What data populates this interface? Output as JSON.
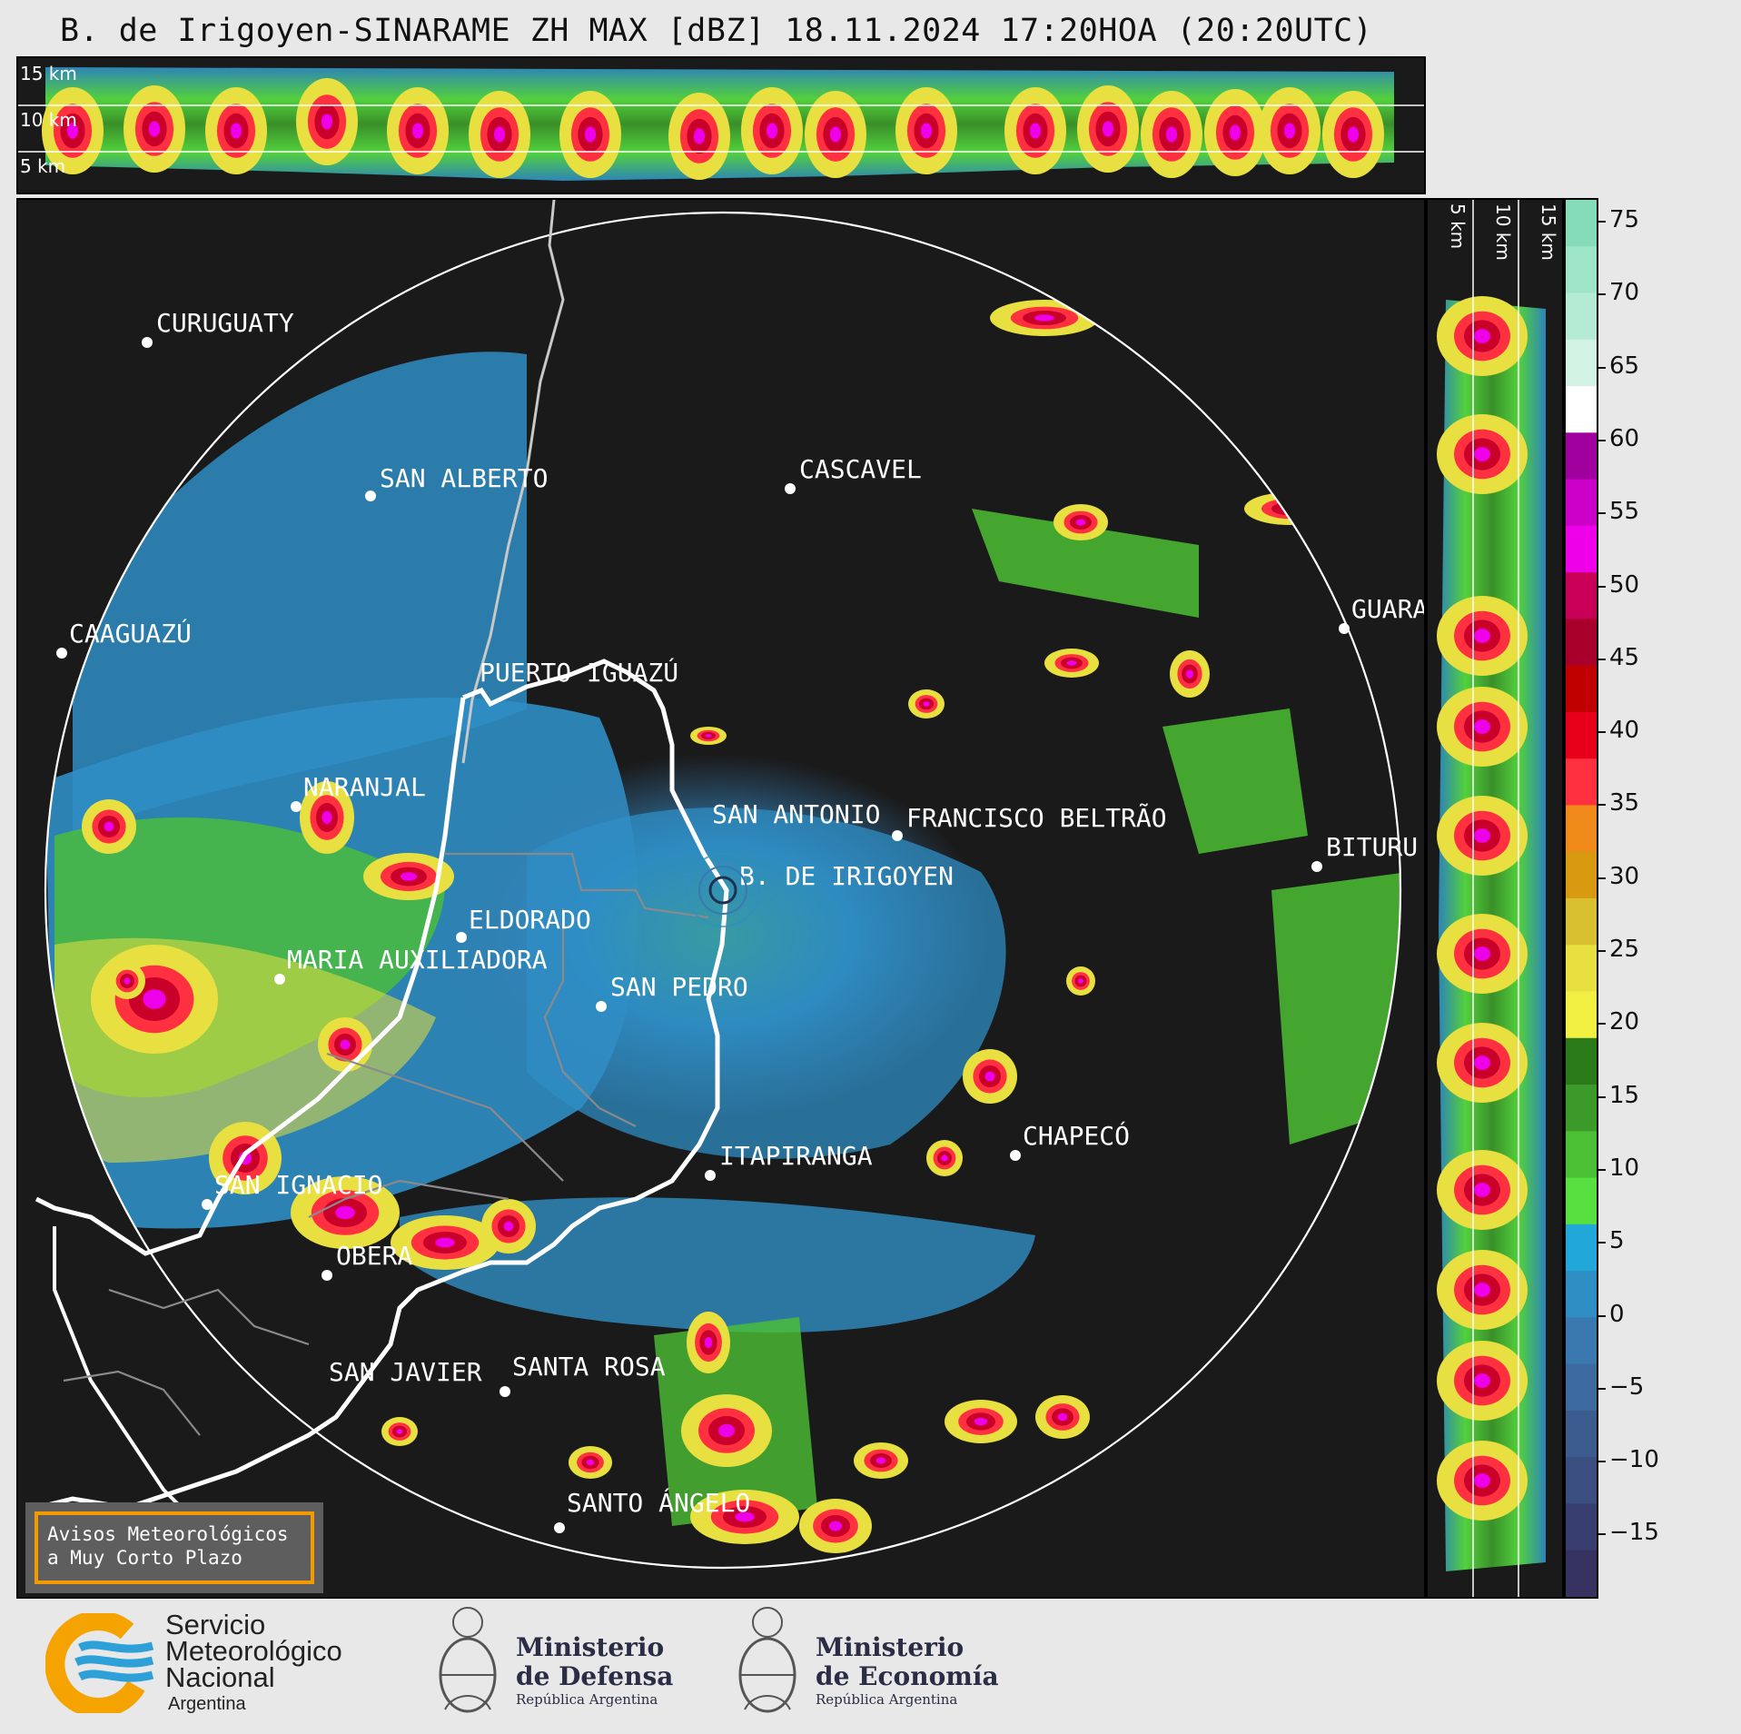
{
  "title": "B. de Irigoyen-SINARAME ZH MAX [dBZ] 18.11.2024 17:20HOA (20:20UTC)",
  "height_labels": [
    "15 km",
    "10 km",
    "5 km"
  ],
  "colorbar": {
    "ticks": [
      "75",
      "70",
      "65",
      "60",
      "55",
      "50",
      "45",
      "40",
      "35",
      "30",
      "25",
      "20",
      "15",
      "10",
      "5",
      "0",
      "−5",
      "−10",
      "−15"
    ],
    "colors": [
      "#85dcb8",
      "#9ee4c6",
      "#b5ebd4",
      "#d2f3e4",
      "#ffffff",
      "#a0009e",
      "#cc00c8",
      "#ee00e8",
      "#c80058",
      "#a8002a",
      "#c00000",
      "#e8001a",
      "#ff3040",
      "#f08a1a",
      "#d89a10",
      "#d8c030",
      "#e8e040",
      "#f2f040",
      "#2a7a1a",
      "#3c9a2a",
      "#4cc034",
      "#58e040",
      "#22a8d8",
      "#2f8ec4",
      "#3a78b0",
      "#3d6aa0",
      "#3c5c90",
      "#3a4e80",
      "#383f70",
      "#363360"
    ]
  },
  "cities": [
    {
      "name": "CURUGUATY"
    },
    {
      "name": "SAN ALBERTO"
    },
    {
      "name": "CASCAVEL"
    },
    {
      "name": "CAAGUAZÚ"
    },
    {
      "name": "GUARA"
    },
    {
      "name": "PUERTO IGUAZÚ"
    },
    {
      "name": "NARANJAL"
    },
    {
      "name": "SAN ANTONIO"
    },
    {
      "name": "FRANCISCO BELTRÃO"
    },
    {
      "name": "BITURU"
    },
    {
      "name": "B. DE IRIGOYEN"
    },
    {
      "name": "ELDORADO"
    },
    {
      "name": "MARIA AUXILIADORA"
    },
    {
      "name": "SAN PEDRO"
    },
    {
      "name": "CHAPECÓ"
    },
    {
      "name": "ITAPIRANGA"
    },
    {
      "name": "SAN IGNACIO"
    },
    {
      "name": "OBERA"
    },
    {
      "name": "SAN JAVIER"
    },
    {
      "name": "SANTA ROSA"
    },
    {
      "name": "SANTO ÁNGELO"
    }
  ],
  "warning": {
    "line1": "Avisos Meteorológicos",
    "line2": "a Muy Corto Plazo"
  },
  "logos": {
    "smn": {
      "line1": "Servicio",
      "line2": "Meteorológico",
      "line3": "Nacional",
      "sub": "Argentina"
    },
    "defensa": {
      "line1": "Ministerio",
      "line2": "de Defensa",
      "sub": "República Argentina"
    },
    "economia": {
      "line1": "Ministerio",
      "line2": "de Economía",
      "sub": "República Argentina"
    }
  }
}
